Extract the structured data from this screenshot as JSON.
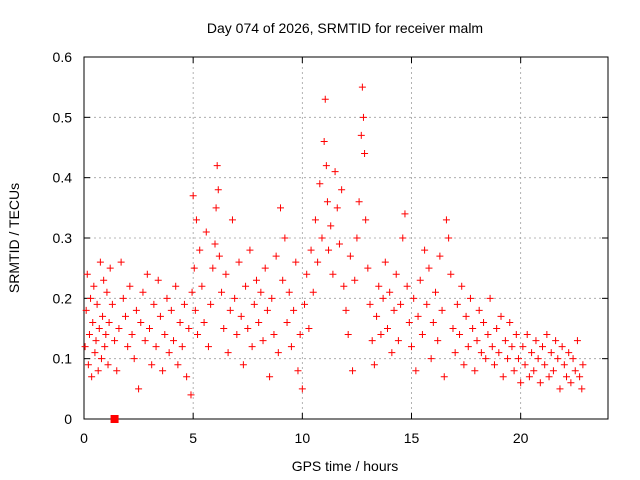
{
  "chart_data": {
    "type": "scatter",
    "title": "Day 074 of 2026, SRMTID for receiver malm",
    "xlabel": "GPS time / hours",
    "ylabel": "SRMTID / TECUs",
    "xlim": [
      0,
      24
    ],
    "ylim": [
      0,
      0.6
    ],
    "xticks": [
      0,
      5,
      10,
      15,
      20
    ],
    "xtick_labels": [
      "0",
      "5",
      "10",
      "15",
      "20"
    ],
    "yticks": [
      0,
      0.1,
      0.2,
      0.3,
      0.4,
      0.5,
      0.6
    ],
    "ytick_labels": [
      "0",
      "0.1",
      "0.2",
      "0.3",
      "0.4",
      "0.5",
      "0.6"
    ],
    "grid": true,
    "marker": "plus",
    "color": "#ff0000",
    "series": [
      {
        "name": "SRMTID",
        "points": [
          [
            0.05,
            0.12
          ],
          [
            0.1,
            0.18
          ],
          [
            0.15,
            0.24
          ],
          [
            0.2,
            0.09
          ],
          [
            0.25,
            0.14
          ],
          [
            0.3,
            0.2
          ],
          [
            0.35,
            0.07
          ],
          [
            0.4,
            0.16
          ],
          [
            0.45,
            0.22
          ],
          [
            0.5,
            0.11
          ],
          [
            0.55,
            0.13
          ],
          [
            0.6,
            0.19
          ],
          [
            0.65,
            0.08
          ],
          [
            0.7,
            0.15
          ],
          [
            0.75,
            0.26
          ],
          [
            0.8,
            0.1
          ],
          [
            0.85,
            0.17
          ],
          [
            0.9,
            0.23
          ],
          [
            0.95,
            0.12
          ],
          [
            1.0,
            0.14
          ],
          [
            1.05,
            0.21
          ],
          [
            1.1,
            0.09
          ],
          [
            1.15,
            0.16
          ],
          [
            1.2,
            0.25
          ],
          [
            1.3,
            0.19
          ],
          [
            1.4,
            0.13
          ],
          [
            1.5,
            0.08
          ],
          [
            1.6,
            0.15
          ],
          [
            1.7,
            0.26
          ],
          [
            1.8,
            0.2
          ],
          [
            1.9,
            0.17
          ],
          [
            2.0,
            0.12
          ],
          [
            2.1,
            0.22
          ],
          [
            2.2,
            0.14
          ],
          [
            2.3,
            0.1
          ],
          [
            2.4,
            0.18
          ],
          [
            2.5,
            0.05
          ],
          [
            2.6,
            0.16
          ],
          [
            2.7,
            0.21
          ],
          [
            2.8,
            0.13
          ],
          [
            2.9,
            0.24
          ],
          [
            3.0,
            0.15
          ],
          [
            3.1,
            0.09
          ],
          [
            3.2,
            0.19
          ],
          [
            3.3,
            0.12
          ],
          [
            3.4,
            0.23
          ],
          [
            3.5,
            0.17
          ],
          [
            3.6,
            0.08
          ],
          [
            3.7,
            0.14
          ],
          [
            3.8,
            0.2
          ],
          [
            3.9,
            0.11
          ],
          [
            4.0,
            0.18
          ],
          [
            4.1,
            0.13
          ],
          [
            4.2,
            0.22
          ],
          [
            4.3,
            0.09
          ],
          [
            4.4,
            0.16
          ],
          [
            4.5,
            0.12
          ],
          [
            4.6,
            0.19
          ],
          [
            4.7,
            0.07
          ],
          [
            4.8,
            0.15
          ],
          [
            4.9,
            0.04
          ],
          [
            4.95,
            0.21
          ],
          [
            5.0,
            0.37
          ],
          [
            5.05,
            0.25
          ],
          [
            5.1,
            0.18
          ],
          [
            5.15,
            0.33
          ],
          [
            5.2,
            0.14
          ],
          [
            5.3,
            0.28
          ],
          [
            5.4,
            0.22
          ],
          [
            5.5,
            0.16
          ],
          [
            5.6,
            0.31
          ],
          [
            5.7,
            0.12
          ],
          [
            5.8,
            0.19
          ],
          [
            5.9,
            0.25
          ],
          [
            6.0,
            0.29
          ],
          [
            6.05,
            0.35
          ],
          [
            6.1,
            0.42
          ],
          [
            6.15,
            0.38
          ],
          [
            6.2,
            0.27
          ],
          [
            6.3,
            0.21
          ],
          [
            6.4,
            0.15
          ],
          [
            6.5,
            0.24
          ],
          [
            6.6,
            0.11
          ],
          [
            6.7,
            0.18
          ],
          [
            6.8,
            0.33
          ],
          [
            6.9,
            0.2
          ],
          [
            7.0,
            0.14
          ],
          [
            7.1,
            0.26
          ],
          [
            7.2,
            0.17
          ],
          [
            7.3,
            0.09
          ],
          [
            7.4,
            0.22
          ],
          [
            7.5,
            0.15
          ],
          [
            7.6,
            0.28
          ],
          [
            7.7,
            0.12
          ],
          [
            7.8,
            0.19
          ],
          [
            7.9,
            0.23
          ],
          [
            8.0,
            0.16
          ],
          [
            8.1,
            0.21
          ],
          [
            8.2,
            0.13
          ],
          [
            8.3,
            0.25
          ],
          [
            8.4,
            0.18
          ],
          [
            8.5,
            0.07
          ],
          [
            8.6,
            0.2
          ],
          [
            8.7,
            0.14
          ],
          [
            8.8,
            0.27
          ],
          [
            8.9,
            0.11
          ],
          [
            9.0,
            0.35
          ],
          [
            9.1,
            0.23
          ],
          [
            9.2,
            0.3
          ],
          [
            9.3,
            0.16
          ],
          [
            9.4,
            0.21
          ],
          [
            9.5,
            0.12
          ],
          [
            9.6,
            0.18
          ],
          [
            9.7,
            0.26
          ],
          [
            9.8,
            0.08
          ],
          [
            9.9,
            0.14
          ],
          [
            10.0,
            0.05
          ],
          [
            10.1,
            0.19
          ],
          [
            10.2,
            0.24
          ],
          [
            10.3,
            0.15
          ],
          [
            10.4,
            0.28
          ],
          [
            10.5,
            0.21
          ],
          [
            10.6,
            0.33
          ],
          [
            10.7,
            0.26
          ],
          [
            10.8,
            0.39
          ],
          [
            10.9,
            0.3
          ],
          [
            11.0,
            0.46
          ],
          [
            11.05,
            0.53
          ],
          [
            11.1,
            0.42
          ],
          [
            11.15,
            0.36
          ],
          [
            11.2,
            0.28
          ],
          [
            11.3,
            0.32
          ],
          [
            11.4,
            0.24
          ],
          [
            11.5,
            0.41
          ],
          [
            11.6,
            0.35
          ],
          [
            11.7,
            0.29
          ],
          [
            11.8,
            0.38
          ],
          [
            11.9,
            0.22
          ],
          [
            12.0,
            0.18
          ],
          [
            12.1,
            0.14
          ],
          [
            12.2,
            0.27
          ],
          [
            12.3,
            0.08
          ],
          [
            12.4,
            0.23
          ],
          [
            12.5,
            0.3
          ],
          [
            12.6,
            0.36
          ],
          [
            12.7,
            0.47
          ],
          [
            12.75,
            0.55
          ],
          [
            12.8,
            0.5
          ],
          [
            12.85,
            0.44
          ],
          [
            12.9,
            0.33
          ],
          [
            13.0,
            0.25
          ],
          [
            13.1,
            0.19
          ],
          [
            13.2,
            0.13
          ],
          [
            13.3,
            0.09
          ],
          [
            13.4,
            0.17
          ],
          [
            13.5,
            0.22
          ],
          [
            13.6,
            0.14
          ],
          [
            13.7,
            0.2
          ],
          [
            13.8,
            0.26
          ],
          [
            13.9,
            0.15
          ],
          [
            14.0,
            0.21
          ],
          [
            14.1,
            0.11
          ],
          [
            14.2,
            0.18
          ],
          [
            14.3,
            0.24
          ],
          [
            14.4,
            0.13
          ],
          [
            14.5,
            0.19
          ],
          [
            14.6,
            0.3
          ],
          [
            14.7,
            0.34
          ],
          [
            14.8,
            0.22
          ],
          [
            14.9,
            0.16
          ],
          [
            15.0,
            0.12
          ],
          [
            15.1,
            0.2
          ],
          [
            15.2,
            0.08
          ],
          [
            15.3,
            0.17
          ],
          [
            15.4,
            0.23
          ],
          [
            15.5,
            0.14
          ],
          [
            15.6,
            0.28
          ],
          [
            15.7,
            0.19
          ],
          [
            15.8,
            0.25
          ],
          [
            15.9,
            0.1
          ],
          [
            16.0,
            0.16
          ],
          [
            16.1,
            0.21
          ],
          [
            16.2,
            0.13
          ],
          [
            16.3,
            0.27
          ],
          [
            16.4,
            0.18
          ],
          [
            16.5,
            0.07
          ],
          [
            16.6,
            0.33
          ],
          [
            16.7,
            0.3
          ],
          [
            16.8,
            0.24
          ],
          [
            16.9,
            0.15
          ],
          [
            17.0,
            0.11
          ],
          [
            17.1,
            0.19
          ],
          [
            17.2,
            0.14
          ],
          [
            17.3,
            0.22
          ],
          [
            17.4,
            0.09
          ],
          [
            17.5,
            0.17
          ],
          [
            17.6,
            0.12
          ],
          [
            17.7,
            0.2
          ],
          [
            17.8,
            0.15
          ],
          [
            17.9,
            0.08
          ],
          [
            18.0,
            0.13
          ],
          [
            18.1,
            0.18
          ],
          [
            18.2,
            0.11
          ],
          [
            18.3,
            0.16
          ],
          [
            18.4,
            0.1
          ],
          [
            18.5,
            0.14
          ],
          [
            18.6,
            0.2
          ],
          [
            18.7,
            0.12
          ],
          [
            18.8,
            0.09
          ],
          [
            18.9,
            0.15
          ],
          [
            19.0,
            0.11
          ],
          [
            19.1,
            0.17
          ],
          [
            19.2,
            0.07
          ],
          [
            19.3,
            0.13
          ],
          [
            19.4,
            0.1
          ],
          [
            19.5,
            0.16
          ],
          [
            19.6,
            0.12
          ],
          [
            19.7,
            0.08
          ],
          [
            19.8,
            0.14
          ],
          [
            19.9,
            0.1
          ],
          [
            20.0,
            0.06
          ],
          [
            20.1,
            0.12
          ],
          [
            20.2,
            0.09
          ],
          [
            20.3,
            0.14
          ],
          [
            20.4,
            0.07
          ],
          [
            20.5,
            0.11
          ],
          [
            20.6,
            0.08
          ],
          [
            20.7,
            0.13
          ],
          [
            20.8,
            0.1
          ],
          [
            20.9,
            0.06
          ],
          [
            21.0,
            0.12
          ],
          [
            21.1,
            0.09
          ],
          [
            21.2,
            0.14
          ],
          [
            21.3,
            0.07
          ],
          [
            21.4,
            0.11
          ],
          [
            21.5,
            0.08
          ],
          [
            21.6,
            0.13
          ],
          [
            21.7,
            0.1
          ],
          [
            21.8,
            0.05
          ],
          [
            21.9,
            0.12
          ],
          [
            22.0,
            0.09
          ],
          [
            22.1,
            0.07
          ],
          [
            22.2,
            0.11
          ],
          [
            22.3,
            0.06
          ],
          [
            22.4,
            0.1
          ],
          [
            22.5,
            0.08
          ],
          [
            22.6,
            0.13
          ],
          [
            22.7,
            0.07
          ],
          [
            22.8,
            0.05
          ],
          [
            22.85,
            0.09
          ]
        ]
      }
    ],
    "annotations": [
      {
        "type": "square-marker",
        "x": 1.4,
        "y": 0.0
      }
    ]
  }
}
